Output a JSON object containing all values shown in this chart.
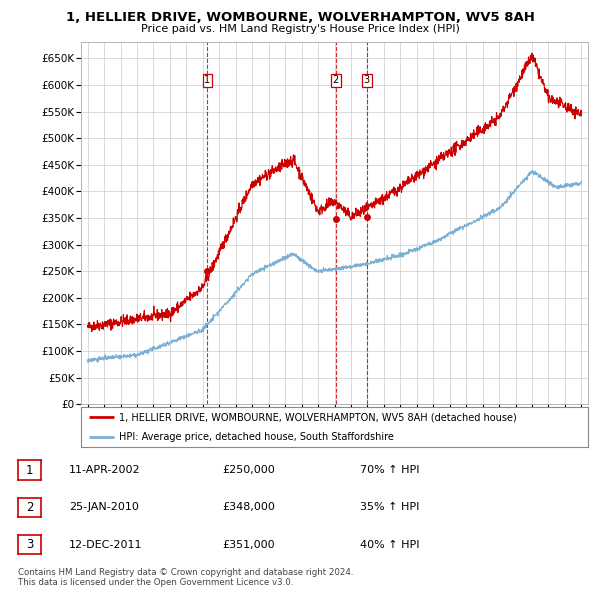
{
  "title": "1, HELLIER DRIVE, WOMBOURNE, WOLVERHAMPTON, WV5 8AH",
  "subtitle": "Price paid vs. HM Land Registry's House Price Index (HPI)",
  "yticks": [
    0,
    50000,
    100000,
    150000,
    200000,
    250000,
    300000,
    350000,
    400000,
    450000,
    500000,
    550000,
    600000,
    650000
  ],
  "ytick_labels": [
    "£0",
    "£50K",
    "£100K",
    "£150K",
    "£200K",
    "£250K",
    "£300K",
    "£350K",
    "£400K",
    "£450K",
    "£500K",
    "£550K",
    "£600K",
    "£650K"
  ],
  "xlim_start": 1994.6,
  "xlim_end": 2025.4,
  "ylim_min": 0,
  "ylim_max": 680000,
  "xtick_years": [
    1995,
    1996,
    1997,
    1998,
    1999,
    2000,
    2001,
    2002,
    2003,
    2004,
    2005,
    2006,
    2007,
    2008,
    2009,
    2010,
    2011,
    2012,
    2013,
    2014,
    2015,
    2016,
    2017,
    2018,
    2019,
    2020,
    2021,
    2022,
    2023,
    2024,
    2025
  ],
  "sale_dates": [
    2002.28,
    2010.07,
    2011.96
  ],
  "sale_prices": [
    250000,
    348000,
    351000
  ],
  "sale_labels": [
    "1",
    "2",
    "3"
  ],
  "red_line_color": "#cc0000",
  "blue_line_color": "#7bafd4",
  "marker_color": "#cc0000",
  "vline_color": "#cc0000",
  "legend_red_label": "1, HELLIER DRIVE, WOMBOURNE, WOLVERHAMPTON, WV5 8AH (detached house)",
  "legend_blue_label": "HPI: Average price, detached house, South Staffordshire",
  "table_rows": [
    {
      "num": "1",
      "date": "11-APR-2002",
      "price": "£250,000",
      "hpi": "70% ↑ HPI"
    },
    {
      "num": "2",
      "date": "25-JAN-2010",
      "price": "£348,000",
      "hpi": "35% ↑ HPI"
    },
    {
      "num": "3",
      "date": "12-DEC-2011",
      "price": "£351,000",
      "hpi": "40% ↑ HPI"
    }
  ],
  "footer_text": "Contains HM Land Registry data © Crown copyright and database right 2024.\nThis data is licensed under the Open Government Licence v3.0.",
  "background_color": "#ffffff",
  "grid_color": "#cccccc"
}
